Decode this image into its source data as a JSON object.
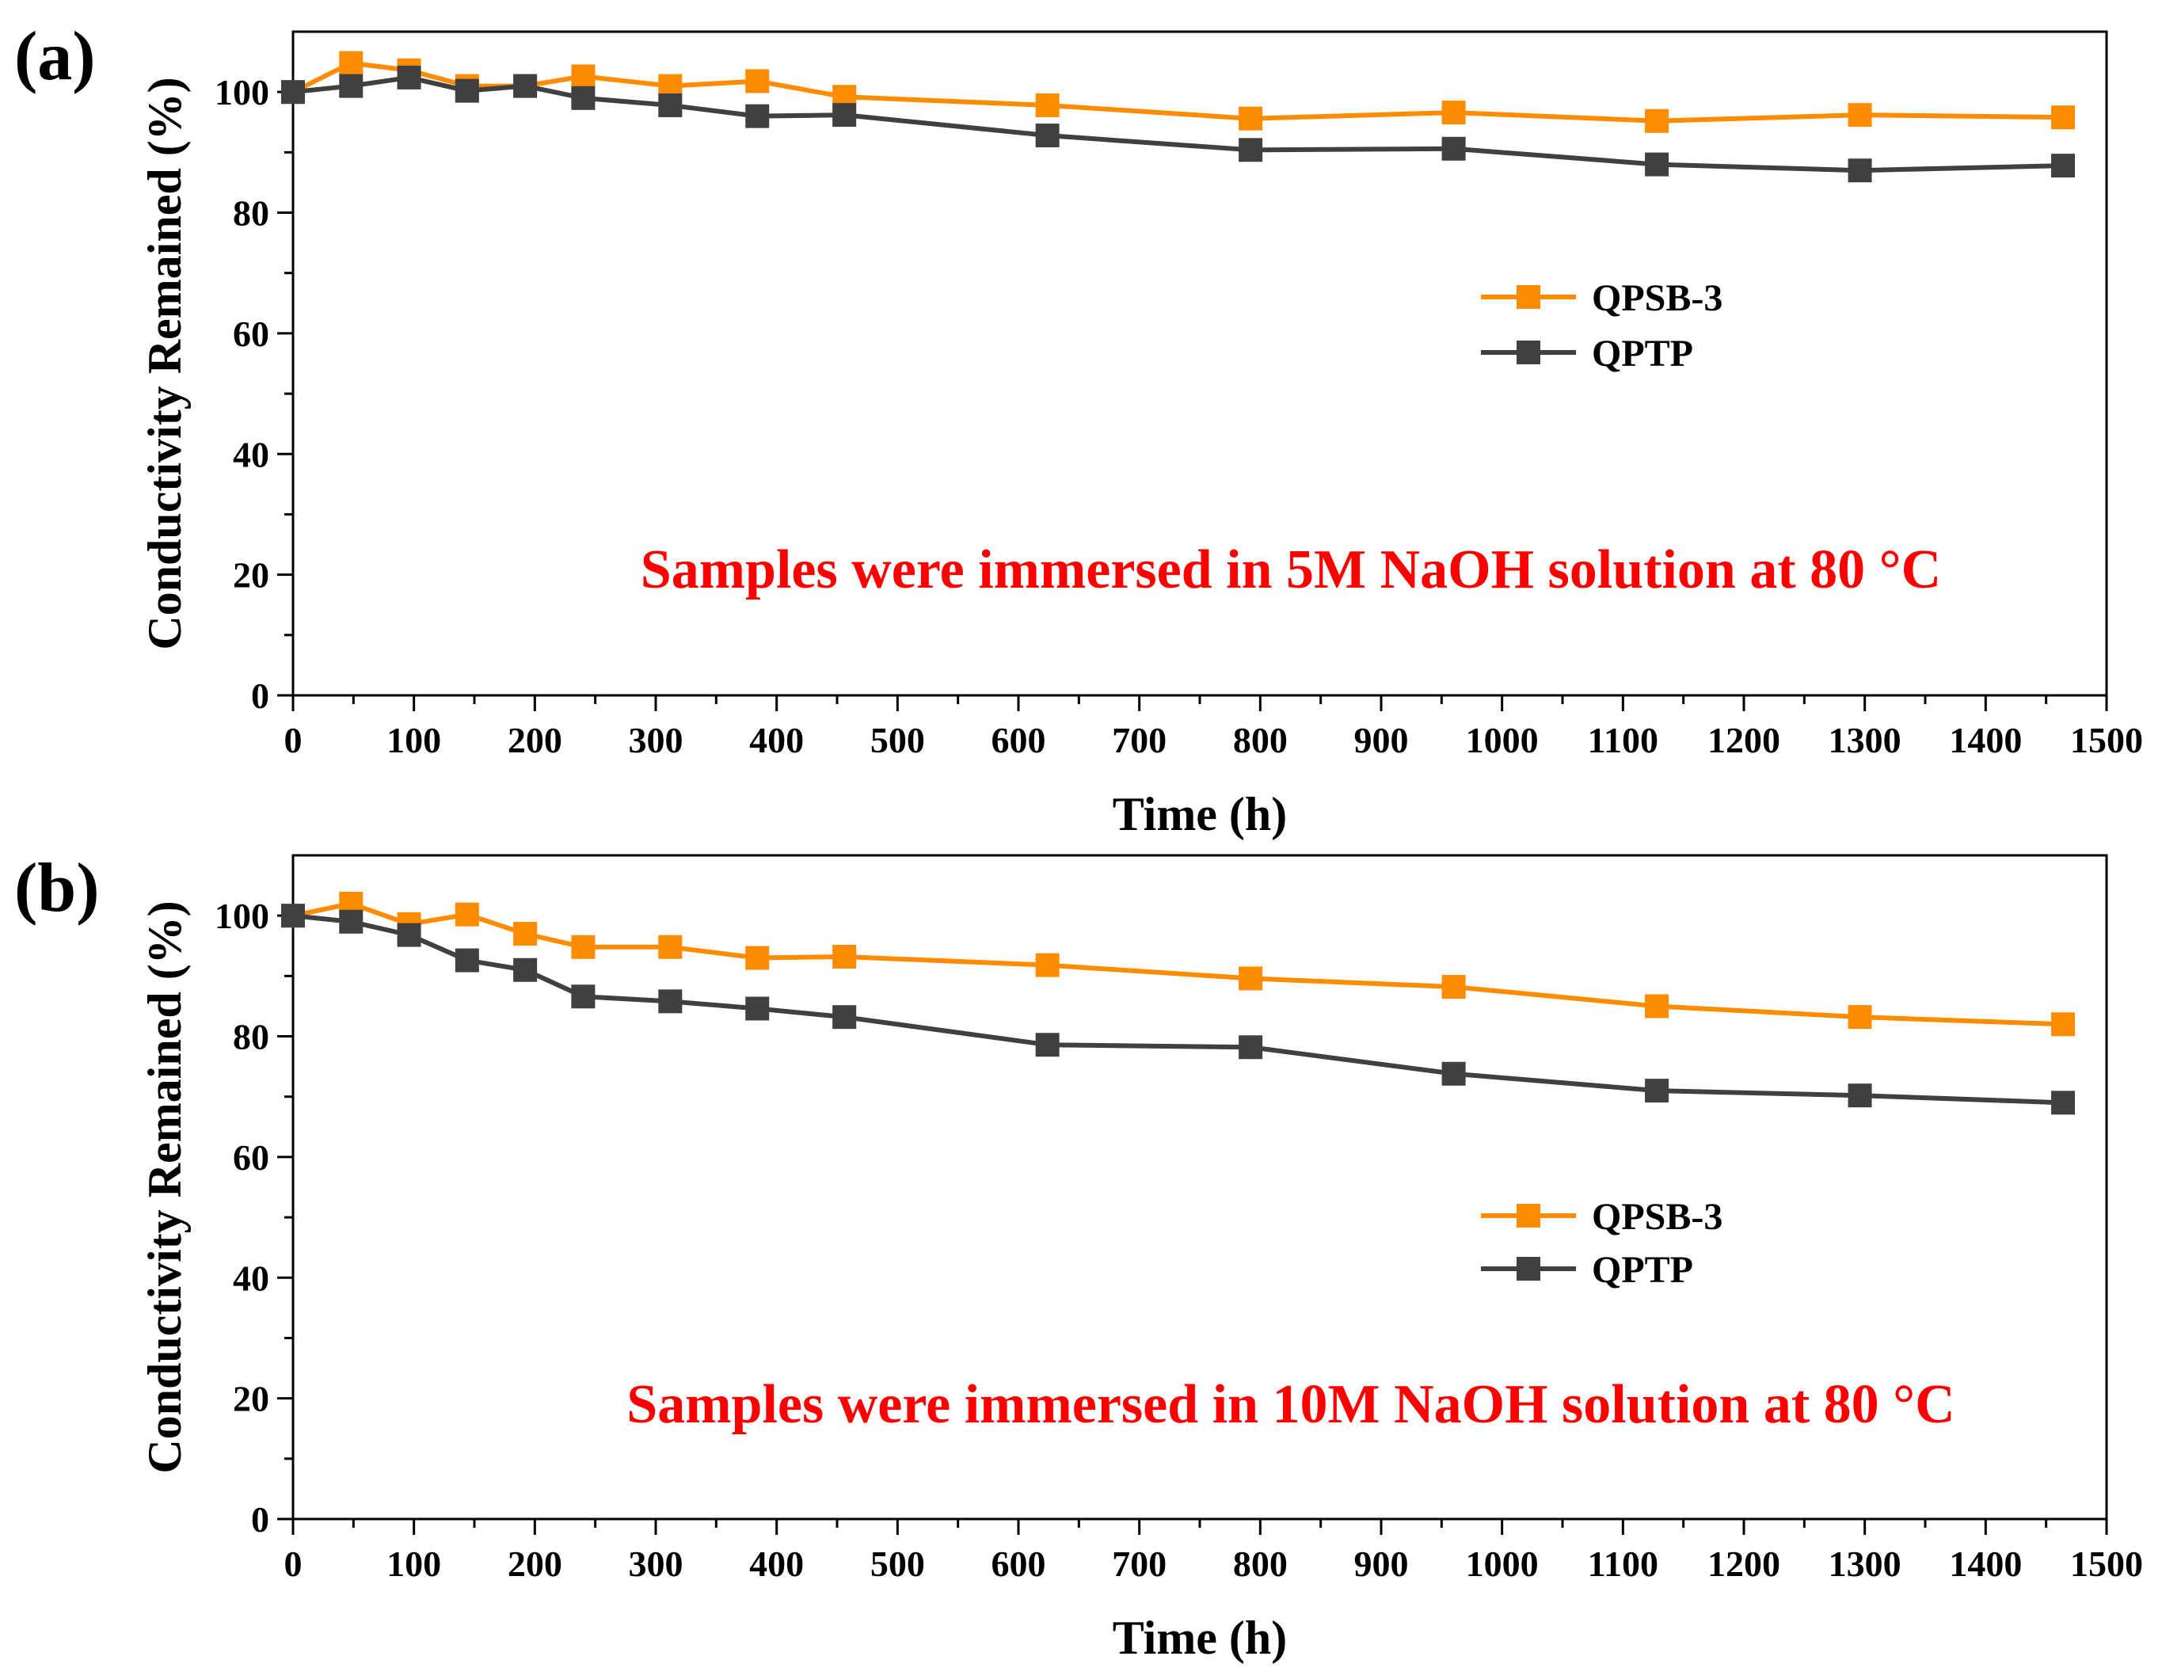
{
  "figure": {
    "background": "#ffffff",
    "axis_color": "#000000",
    "annotation_color": "#ff0000"
  },
  "chart_data": [
    {
      "type": "line",
      "panel_label": "(a)",
      "xlabel": "Time (h)",
      "ylabel": "Conductivity Remained (%)",
      "xlim": [
        0,
        1500
      ],
      "ylim": [
        0,
        110
      ],
      "xticks": [
        0,
        100,
        200,
        300,
        400,
        500,
        600,
        700,
        800,
        900,
        1000,
        1100,
        1200,
        1300,
        1400,
        1500
      ],
      "yticks": [
        0,
        20,
        40,
        60,
        80,
        100
      ],
      "grid": false,
      "legend_position": "center-right",
      "annotation": "Samples were immersed in 5M NaOH solution at 80 °C",
      "series": [
        {
          "name": "QPSB-3",
          "color": "#ff8c00",
          "marker": "square",
          "x": [
            0,
            48,
            96,
            144,
            192,
            240,
            312,
            384,
            456,
            624,
            792,
            960,
            1128,
            1296,
            1464
          ],
          "y": [
            100,
            104.8,
            103.6,
            101.0,
            101.0,
            102.6,
            101.0,
            101.8,
            99.2,
            97.8,
            95.6,
            96.6,
            95.2,
            96.2,
            95.8
          ]
        },
        {
          "name": "QPTP",
          "color": "#404040",
          "marker": "square",
          "x": [
            0,
            48,
            96,
            144,
            192,
            240,
            312,
            384,
            456,
            624,
            792,
            960,
            1128,
            1296,
            1464
          ],
          "y": [
            100,
            101.0,
            102.4,
            100.2,
            101.0,
            99.0,
            97.8,
            96.0,
            96.2,
            92.8,
            90.4,
            90.6,
            88.0,
            87.0,
            87.8
          ]
        }
      ]
    },
    {
      "type": "line",
      "panel_label": "(b)",
      "xlabel": "Time (h)",
      "ylabel": "Conductivity Remained (%)",
      "xlim": [
        0,
        1500
      ],
      "ylim": [
        0,
        110
      ],
      "xticks": [
        0,
        100,
        200,
        300,
        400,
        500,
        600,
        700,
        800,
        900,
        1000,
        1100,
        1200,
        1300,
        1400,
        1500
      ],
      "yticks": [
        0,
        20,
        40,
        60,
        80,
        100
      ],
      "grid": false,
      "legend_position": "center-right",
      "annotation": "Samples were immersed in 10M NaOH solution at 80 °C",
      "series": [
        {
          "name": "QPSB-3",
          "color": "#ff8c00",
          "marker": "square",
          "x": [
            0,
            48,
            96,
            144,
            192,
            240,
            312,
            384,
            456,
            624,
            792,
            960,
            1128,
            1296,
            1464
          ],
          "y": [
            100,
            102.0,
            98.6,
            100.2,
            97.0,
            94.8,
            94.8,
            93.0,
            93.2,
            91.8,
            89.6,
            88.2,
            85.0,
            83.2,
            82.0
          ]
        },
        {
          "name": "QPTP",
          "color": "#404040",
          "marker": "square",
          "x": [
            0,
            48,
            96,
            144,
            192,
            240,
            312,
            384,
            456,
            624,
            792,
            960,
            1128,
            1296,
            1464
          ],
          "y": [
            100,
            99.0,
            96.8,
            92.6,
            91.0,
            86.6,
            85.8,
            84.6,
            83.2,
            78.6,
            78.2,
            73.8,
            71.0,
            70.2,
            69.0
          ]
        }
      ]
    }
  ]
}
